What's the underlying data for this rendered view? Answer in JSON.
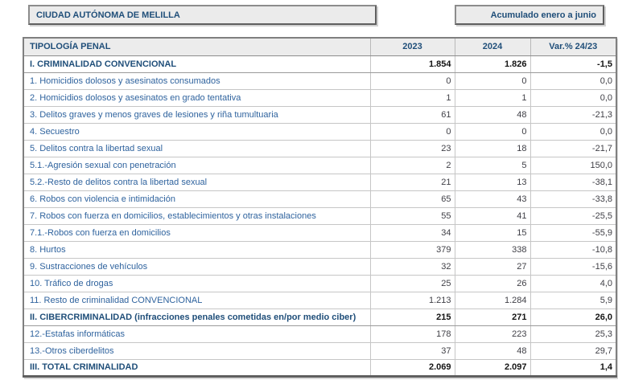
{
  "header": {
    "region_label": "CIUDAD AUTÓNOMA DE MELILLA",
    "period_label": "Acumulado enero a junio"
  },
  "table": {
    "columns": {
      "typology": "TIPOLOGÍA PENAL",
      "y2023": "2023",
      "y2024": "2024",
      "variation": "Var.% 24/23"
    },
    "rows": [
      {
        "label": "I. CRIMINALIDAD CONVENCIONAL",
        "v2023": "1.854",
        "v2024": "1.826",
        "var": "-1,5",
        "bold": true
      },
      {
        "label": "1. Homicidios dolosos y asesinatos consumados",
        "v2023": "0",
        "v2024": "0",
        "var": "0,0",
        "bold": false
      },
      {
        "label": "2. Homicidios dolosos y asesinatos en grado tentativa",
        "v2023": "1",
        "v2024": "1",
        "var": "0,0",
        "bold": false
      },
      {
        "label": "3. Delitos graves y menos graves de lesiones y riña tumultuaria",
        "v2023": "61",
        "v2024": "48",
        "var": "-21,3",
        "bold": false
      },
      {
        "label": "4. Secuestro",
        "v2023": "0",
        "v2024": "0",
        "var": "0,0",
        "bold": false
      },
      {
        "label": "5. Delitos contra la libertad sexual",
        "v2023": "23",
        "v2024": "18",
        "var": "-21,7",
        "bold": false
      },
      {
        "label": "5.1.-Agresión sexual con penetración",
        "v2023": "2",
        "v2024": "5",
        "var": "150,0",
        "bold": false
      },
      {
        "label": "5.2.-Resto de delitos contra la libertad sexual",
        "v2023": "21",
        "v2024": "13",
        "var": "-38,1",
        "bold": false
      },
      {
        "label": "6. Robos con violencia e intimidación",
        "v2023": "65",
        "v2024": "43",
        "var": "-33,8",
        "bold": false
      },
      {
        "label": "7. Robos con fuerza en domicilios, establecimientos y otras instalaciones",
        "v2023": "55",
        "v2024": "41",
        "var": "-25,5",
        "bold": false
      },
      {
        "label": "7.1.-Robos con fuerza en domicilios",
        "v2023": "34",
        "v2024": "15",
        "var": "-55,9",
        "bold": false
      },
      {
        "label": "8. Hurtos",
        "v2023": "379",
        "v2024": "338",
        "var": "-10,8",
        "bold": false
      },
      {
        "label": "9. Sustracciones de vehículos",
        "v2023": "32",
        "v2024": "27",
        "var": "-15,6",
        "bold": false
      },
      {
        "label": "10. Tráfico de drogas",
        "v2023": "25",
        "v2024": "26",
        "var": "4,0",
        "bold": false
      },
      {
        "label": "11. Resto de criminalidad CONVENCIONAL",
        "v2023": "1.213",
        "v2024": "1.284",
        "var": "5,9",
        "bold": false
      },
      {
        "label": "II. CIBERCRIMINALIDAD (infracciones penales cometidas en/por medio ciber)",
        "v2023": "215",
        "v2024": "271",
        "var": "26,0",
        "bold": true
      },
      {
        "label": "12.-Estafas informáticas",
        "v2023": "178",
        "v2024": "223",
        "var": "25,3",
        "bold": false
      },
      {
        "label": "13.-Otros ciberdelitos",
        "v2023": "37",
        "v2024": "48",
        "var": "29,7",
        "bold": false
      },
      {
        "label": "III. TOTAL CRIMINALIDAD",
        "v2023": "2.069",
        "v2024": "2.097",
        "var": "1,4",
        "bold": true
      }
    ]
  }
}
